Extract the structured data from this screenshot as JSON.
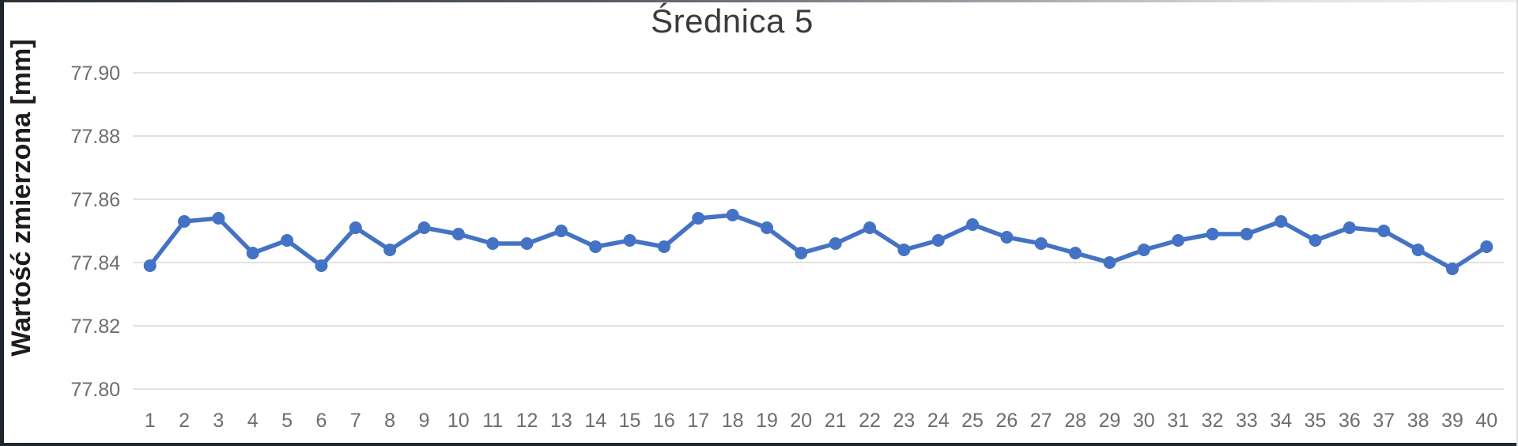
{
  "chart_data": {
    "type": "line",
    "title": "Średnica 5",
    "ylabel": "Wartość zmierzona [mm]",
    "xlabel": "",
    "x_categories": [
      "1",
      "2",
      "3",
      "4",
      "5",
      "6",
      "7",
      "8",
      "9",
      "10",
      "11",
      "12",
      "13",
      "14",
      "15",
      "16",
      "17",
      "18",
      "19",
      "20",
      "21",
      "22",
      "23",
      "24",
      "25",
      "26",
      "27",
      "28",
      "29",
      "30",
      "31",
      "32",
      "33",
      "34",
      "35",
      "36",
      "37",
      "38",
      "39",
      "40"
    ],
    "values": [
      77.839,
      77.853,
      77.854,
      77.843,
      77.847,
      77.839,
      77.851,
      77.844,
      77.851,
      77.849,
      77.846,
      77.846,
      77.85,
      77.845,
      77.847,
      77.845,
      77.854,
      77.855,
      77.851,
      77.843,
      77.846,
      77.851,
      77.844,
      77.847,
      77.852,
      77.848,
      77.846,
      77.843,
      77.84,
      77.844,
      77.847,
      77.849,
      77.849,
      77.853,
      77.847,
      77.851,
      77.85,
      77.844,
      77.838,
      77.845
    ],
    "ylim": [
      77.8,
      77.9
    ],
    "ytick_interval": 0.02,
    "ytick_labels": [
      "77.90",
      "77.88",
      "77.86",
      "77.84",
      "77.82",
      "77.80"
    ],
    "grid": "horizontal",
    "legend_position": "none",
    "line_color": "#4472C4",
    "marker_style": "circle",
    "gridline_color": "#e2e2e2",
    "tick_label_color": "#6d6d6d",
    "title_color": "#3b3b3b",
    "axis_title_color": "#1c1c1c"
  }
}
